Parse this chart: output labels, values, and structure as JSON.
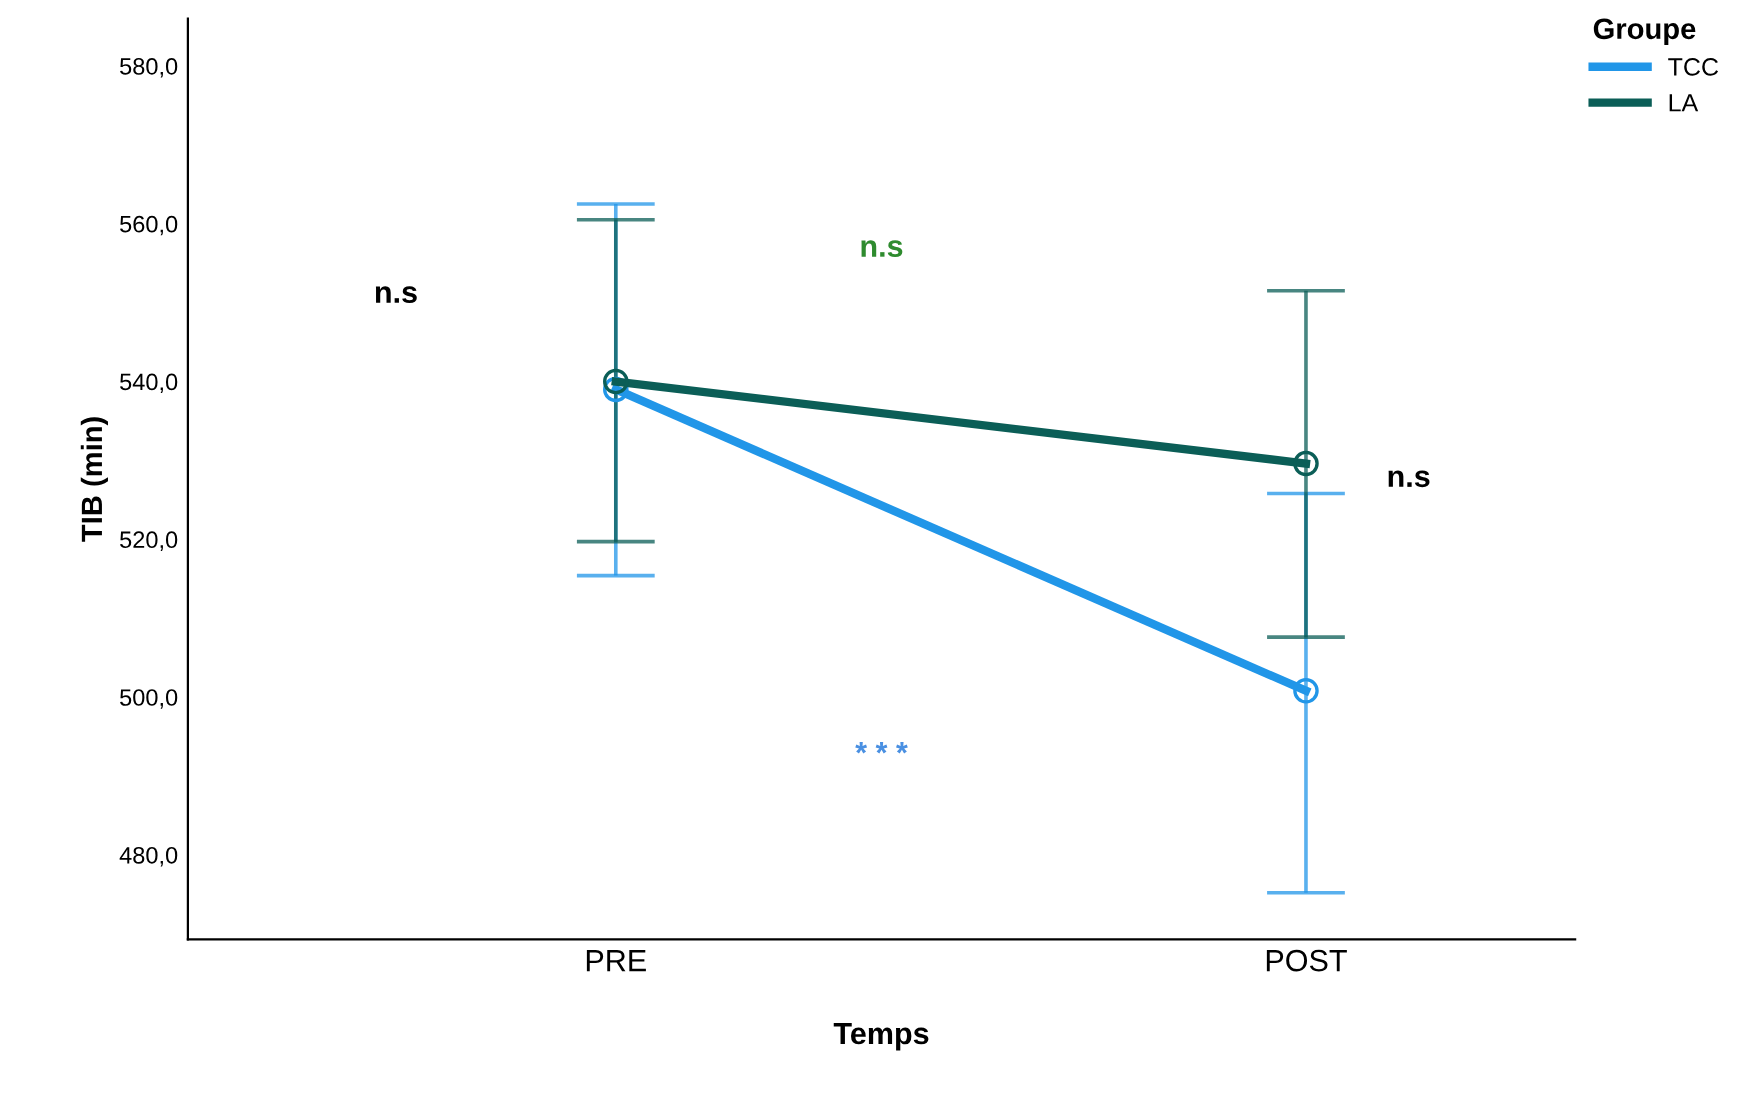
{
  "chart_data": {
    "type": "line",
    "xlabel": "Temps",
    "ylabel": "TIB (min)",
    "legend_title": "Groupe",
    "legend": "top right",
    "marker": "circle",
    "grid": false,
    "categories": [
      "PRE",
      "POST"
    ],
    "series": [
      {
        "name": "TCC",
        "color": "#2196e8",
        "values": [
          539.0,
          500.8
        ],
        "errors": [
          [
            515.4,
            562.5
          ],
          [
            475.2,
            525.8
          ]
        ]
      },
      {
        "name": "LA",
        "color": "#0b5e57",
        "values": [
          540.0,
          529.6
        ],
        "errors": [
          [
            519.7,
            560.5
          ],
          [
            507.6,
            551.5
          ]
        ]
      }
    ],
    "ylim": [
      469.3,
      586.0
    ],
    "yticks": [
      {
        "value": 480,
        "label": "480,0"
      },
      {
        "value": 500,
        "label": "500,0"
      },
      {
        "value": 520,
        "label": "520,0"
      },
      {
        "value": 540,
        "label": "540,0"
      },
      {
        "value": 560,
        "label": "560,0"
      },
      {
        "value": 580,
        "label": "580,0"
      }
    ],
    "annotations": [
      "n.s",
      "n.s",
      "* * *",
      "n.s"
    ]
  }
}
